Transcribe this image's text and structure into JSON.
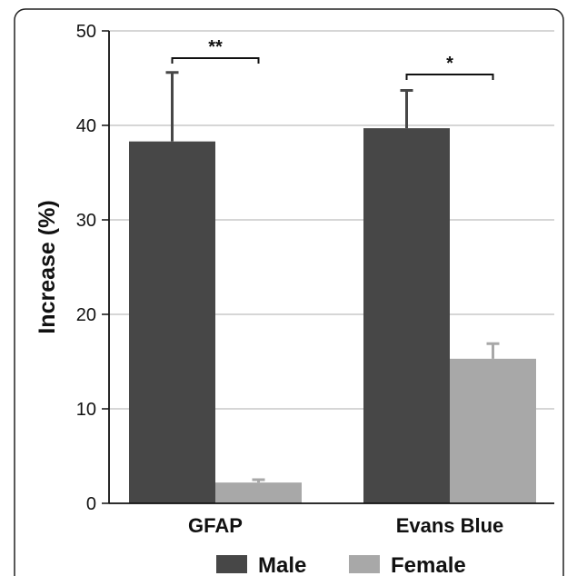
{
  "chart_data": {
    "type": "bar",
    "categories": [
      "GFAP",
      "Evans Blue"
    ],
    "series": [
      {
        "name": "Male",
        "values": [
          38.3,
          39.7
        ],
        "errors": [
          7.3,
          4.0
        ],
        "color": "#474747"
      },
      {
        "name": "Female",
        "values": [
          2.2,
          15.3
        ],
        "errors": [
          0.3,
          1.6
        ],
        "color": "#a8a8a8"
      }
    ],
    "ylabel": "Increase (%)",
    "ylim": [
      0,
      50
    ],
    "yticks": [
      0,
      10,
      20,
      30,
      40,
      50
    ],
    "grid": true,
    "legend_position": "bottom",
    "significance": [
      "**",
      "*"
    ],
    "colors": {
      "grid": "#c8c8c8",
      "axis": "#111111",
      "error_bar": "#474747"
    }
  }
}
